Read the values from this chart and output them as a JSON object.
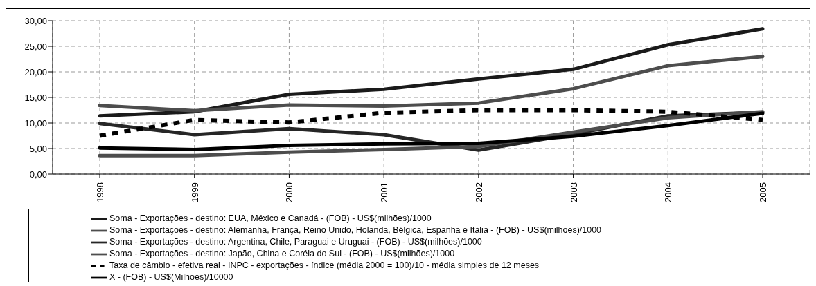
{
  "chart_data": {
    "type": "line",
    "categories": [
      "1998",
      "1999",
      "2000",
      "2001",
      "2002",
      "2003",
      "2004",
      "2005"
    ],
    "series": [
      {
        "name": "Soma - Exportações - destino: EUA, México e Canadá - (FOB) - US$(milhões)/1000",
        "color": "#1a1a1a",
        "values": [
          11.4,
          12.2,
          15.6,
          16.6,
          18.6,
          20.5,
          25.3,
          28.4
        ]
      },
      {
        "name": "Soma - Exportações - destino: Alemanha, França, Reino Unido, Holanda, Bélgica, Espanha e Itália - (FOB) - US$(milhões)/1000",
        "color": "#4d4d4d",
        "values": [
          13.4,
          12.4,
          13.5,
          13.3,
          13.9,
          16.7,
          21.2,
          23.0
        ]
      },
      {
        "name": "Soma - Exportações - destino: Argentina, Chile, Paraguai e Uruguai - (FOB) - US$(milhões)/1000",
        "color": "#262626",
        "values": [
          9.9,
          7.7,
          8.9,
          7.7,
          4.7,
          7.8,
          11.4,
          12.1
        ]
      },
      {
        "name": "Soma - Exportações - destino: Japão, China e Coréia do Sul - (FOB) - US$(milhões)/1000",
        "color": "#4d4d4d",
        "values": [
          3.6,
          3.6,
          4.3,
          4.8,
          5.4,
          8.2,
          11.0,
          12.2
        ]
      },
      {
        "name": "Taxa de câmbio - efetiva real - INPC - exportações - índice (média 2000 = 100)/10 - média simples de 12 meses",
        "color": "#000000",
        "line_style": "dashed",
        "values": [
          7.5,
          10.6,
          10.1,
          12.0,
          12.5,
          12.5,
          12.2,
          10.6
        ]
      },
      {
        "name": "X - (FOB) - US$(Milhões)/10000",
        "color": "#000000",
        "values": [
          5.1,
          4.8,
          5.6,
          5.9,
          6.0,
          7.4,
          9.5,
          11.9
        ]
      }
    ],
    "ylim": [
      0,
      30
    ],
    "yticks": [
      {
        "value": 0,
        "label": "0,00"
      },
      {
        "value": 5,
        "label": "5,00"
      },
      {
        "value": 10,
        "label": "10,00"
      },
      {
        "value": 15,
        "label": "15,00"
      },
      {
        "value": 20,
        "label": "20,00"
      },
      {
        "value": 25,
        "label": "25,00"
      },
      {
        "value": 30,
        "label": "30,00"
      }
    ],
    "grid": true,
    "legend": "bottom",
    "marker": "none",
    "line_style": "solid"
  }
}
